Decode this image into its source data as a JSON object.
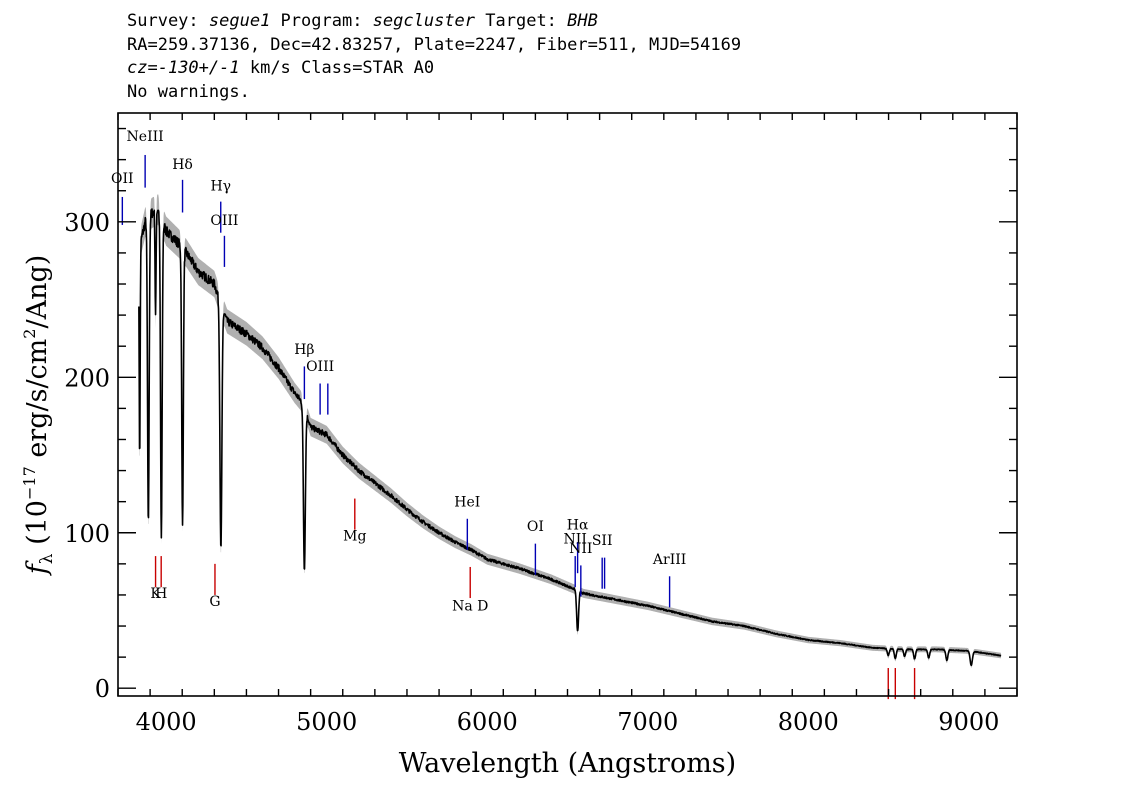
{
  "header": {
    "line1": {
      "survey_label": "Survey: ",
      "survey_value": "segue1",
      "program_label": " Program: ",
      "program_value": "segcluster",
      "target_label": " Target: ",
      "target_value": "BHB"
    },
    "line2": "RA=259.37136, Dec=42.83257, Plate=2247, Fiber=511, MJD=54169",
    "line3": {
      "cz_label": "cz=",
      "cz_value": "-130+/-1",
      "cz_unit": " km/s Class=STAR A0"
    },
    "line4": "No warnings."
  },
  "chart_data": {
    "type": "line",
    "xlabel": "Wavelength (Angstroms)",
    "ylabel": {
      "f": "f",
      "sub": "λ",
      "pre": " (10",
      "exp": "−17",
      "mid": " erg/s/cm",
      "exp2": "2",
      "post": "/Ang)"
    },
    "xlim": [
      3700,
      9300
    ],
    "ylim": [
      -5,
      370
    ],
    "x_ticks": [
      4000,
      5000,
      6000,
      7000,
      8000,
      9000
    ],
    "y_ticks": [
      0,
      100,
      200,
      300
    ],
    "x_tick_labels": [
      "4000",
      "5000",
      "6000",
      "7000",
      "8000",
      "9000"
    ],
    "y_tick_labels": [
      "0",
      "100",
      "200",
      "300"
    ],
    "colors": {
      "spectrum": "#000000",
      "error_band": "#b0b0b0",
      "emission": "#0000b4",
      "absorption": "#c80000"
    },
    "continuum": [
      [
        3830,
        282
      ],
      [
        3870,
        300
      ],
      [
        3900,
        305
      ],
      [
        3950,
        308
      ],
      [
        4000,
        294
      ],
      [
        4100,
        284
      ],
      [
        4200,
        268
      ],
      [
        4300,
        260
      ],
      [
        4345,
        246
      ],
      [
        4380,
        236
      ],
      [
        4500,
        228
      ],
      [
        4600,
        219
      ],
      [
        4700,
        206
      ],
      [
        4800,
        190
      ],
      [
        4855,
        183
      ],
      [
        4900,
        168
      ],
      [
        5000,
        163
      ],
      [
        5100,
        150
      ],
      [
        5200,
        140
      ],
      [
        5300,
        132
      ],
      [
        5400,
        124
      ],
      [
        5500,
        115
      ],
      [
        5600,
        107
      ],
      [
        5700,
        100
      ],
      [
        5800,
        94
      ],
      [
        5900,
        89
      ],
      [
        6000,
        83
      ],
      [
        6200,
        77
      ],
      [
        6400,
        70
      ],
      [
        6560,
        63
      ],
      [
        6600,
        61
      ],
      [
        6800,
        57
      ],
      [
        7000,
        53
      ],
      [
        7200,
        48
      ],
      [
        7400,
        43
      ],
      [
        7600,
        40
      ],
      [
        7800,
        35
      ],
      [
        8000,
        31
      ],
      [
        8200,
        29
      ],
      [
        8400,
        26
      ],
      [
        8600,
        25
      ],
      [
        8800,
        25
      ],
      [
        9000,
        24
      ],
      [
        9200,
        21
      ]
    ],
    "absorption_features": [
      {
        "wave": 3835,
        "depth": 0.48,
        "width": 3
      },
      {
        "wave": 3889,
        "depth": 0.65,
        "width": 5
      },
      {
        "wave": 3934,
        "depth": 0.22,
        "width": 3
      },
      {
        "wave": 3970,
        "depth": 0.68,
        "width": 5
      },
      {
        "wave": 4102,
        "depth": 0.63,
        "width": 5
      },
      {
        "wave": 4341,
        "depth": 0.64,
        "width": 6
      },
      {
        "wave": 4861,
        "depth": 0.58,
        "width": 6
      },
      {
        "wave": 6563,
        "depth": 0.42,
        "width": 6
      },
      {
        "wave": 8498,
        "depth": 0.18,
        "width": 6
      },
      {
        "wave": 8542,
        "depth": 0.25,
        "width": 6
      },
      {
        "wave": 8600,
        "depth": 0.18,
        "width": 6
      },
      {
        "wave": 8662,
        "depth": 0.25,
        "width": 6
      },
      {
        "wave": 8750,
        "depth": 0.22,
        "width": 6
      },
      {
        "wave": 8863,
        "depth": 0.28,
        "width": 6
      },
      {
        "wave": 9015,
        "depth": 0.38,
        "width": 7
      }
    ],
    "emission_lines": [
      {
        "label": "OII",
        "wave": 3727,
        "y_top": 316,
        "y_bottom": 298,
        "label_y": 325
      },
      {
        "label": "NeIII",
        "wave": 3869,
        "y_top": 343,
        "y_bottom": 322,
        "label_y": 352
      },
      {
        "label": "Hδ",
        "wave": 4102,
        "y_top": 327,
        "y_bottom": 306,
        "label_y": 334
      },
      {
        "label": "Hγ",
        "wave": 4340,
        "y_top": 313,
        "y_bottom": 293,
        "label_y": 320
      },
      {
        "label": "OIII",
        "wave": 4363,
        "y_top": 291,
        "y_bottom": 271,
        "label_y": 298
      },
      {
        "label": "Hβ",
        "wave": 4861,
        "y_top": 207,
        "y_bottom": 186,
        "label_y": 215
      },
      {
        "label": "OIII",
        "wave": 4959,
        "y_top": 196,
        "y_bottom": 176,
        "label_y": 204
      },
      {
        "label": "",
        "wave": 5007,
        "y_top": 196,
        "y_bottom": 176,
        "label_y": 204
      },
      {
        "label": "HeI",
        "wave": 5876,
        "y_top": 109,
        "y_bottom": 89,
        "label_y": 117
      },
      {
        "label": "OI",
        "wave": 6300,
        "y_top": 93,
        "y_bottom": 73,
        "label_y": 101
      },
      {
        "label": "NII",
        "wave": 6548,
        "y_top": 85,
        "y_bottom": 65,
        "label_y": 93
      },
      {
        "label": "Hα",
        "wave": 6563,
        "y_top": 94,
        "y_bottom": 74,
        "label_y": 102
      },
      {
        "label": "NII",
        "wave": 6583,
        "y_top": 79,
        "y_bottom": 59,
        "label_y": 87
      },
      {
        "label": "SII",
        "wave": 6716,
        "y_top": 84,
        "y_bottom": 64,
        "label_y": 92
      },
      {
        "label": "",
        "wave": 6731,
        "y_top": 84,
        "y_bottom": 64,
        "label_y": 92
      },
      {
        "label": "ArIII",
        "wave": 7136,
        "y_top": 72,
        "y_bottom": 52,
        "label_y": 80
      }
    ],
    "absorption_lines": [
      {
        "label": "K",
        "wave": 3934,
        "y_top": 85,
        "y_bottom": 65,
        "label_y": 58
      },
      {
        "label": "H",
        "wave": 3969,
        "y_top": 85,
        "y_bottom": 65,
        "label_y": 58
      },
      {
        "label": "G",
        "wave": 4304,
        "y_top": 80,
        "y_bottom": 60,
        "label_y": 53
      },
      {
        "label": "Mg",
        "wave": 5175,
        "y_top": 122,
        "y_bottom": 102,
        "label_y": 95
      },
      {
        "label": "Na D",
        "wave": 5894,
        "y_top": 78,
        "y_bottom": 58,
        "label_y": 50
      },
      {
        "label": "",
        "wave": 8498,
        "y_top": 13,
        "y_bottom": -7,
        "label_y": -15
      },
      {
        "label": "",
        "wave": 8542,
        "y_top": 13,
        "y_bottom": -7,
        "label_y": -15
      },
      {
        "label": "",
        "wave": 8662,
        "y_top": 13,
        "y_bottom": -7,
        "label_y": -15
      }
    ]
  }
}
